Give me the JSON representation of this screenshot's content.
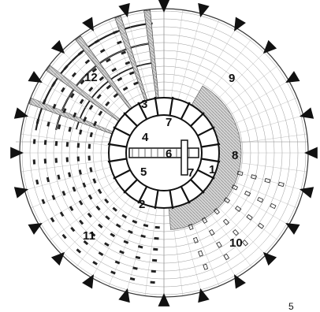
{
  "figure": {
    "page_number": "5",
    "zone_labels": [
      "1",
      "2",
      "3",
      "4",
      "5",
      "6",
      "7",
      "7",
      "8",
      "9",
      "10",
      "11",
      "12"
    ]
  }
}
